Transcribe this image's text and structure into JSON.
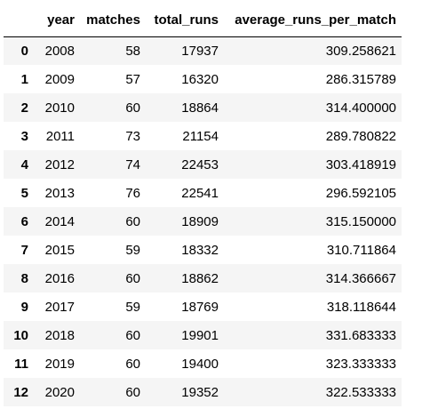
{
  "table": {
    "index_header": "",
    "columns": [
      "year",
      "matches",
      "total_runs",
      "average_runs_per_match"
    ],
    "rows": [
      {
        "index": "0",
        "cells": [
          "2008",
          "58",
          "17937",
          "309.258621"
        ]
      },
      {
        "index": "1",
        "cells": [
          "2009",
          "57",
          "16320",
          "286.315789"
        ]
      },
      {
        "index": "2",
        "cells": [
          "2010",
          "60",
          "18864",
          "314.400000"
        ]
      },
      {
        "index": "3",
        "cells": [
          "2011",
          "73",
          "21154",
          "289.780822"
        ]
      },
      {
        "index": "4",
        "cells": [
          "2012",
          "74",
          "22453",
          "303.418919"
        ]
      },
      {
        "index": "5",
        "cells": [
          "2013",
          "76",
          "22541",
          "296.592105"
        ]
      },
      {
        "index": "6",
        "cells": [
          "2014",
          "60",
          "18909",
          "315.150000"
        ]
      },
      {
        "index": "7",
        "cells": [
          "2015",
          "59",
          "18332",
          "310.711864"
        ]
      },
      {
        "index": "8",
        "cells": [
          "2016",
          "60",
          "18862",
          "314.366667"
        ]
      },
      {
        "index": "9",
        "cells": [
          "2017",
          "59",
          "18769",
          "318.118644"
        ]
      },
      {
        "index": "10",
        "cells": [
          "2018",
          "60",
          "19901",
          "331.683333"
        ]
      },
      {
        "index": "11",
        "cells": [
          "2019",
          "60",
          "19400",
          "323.333333"
        ]
      },
      {
        "index": "12",
        "cells": [
          "2020",
          "60",
          "19352",
          "322.533333"
        ]
      }
    ]
  },
  "colors": {
    "stripe": "#f5f5f5",
    "background": "#ffffff",
    "header_rule": "#000000"
  }
}
